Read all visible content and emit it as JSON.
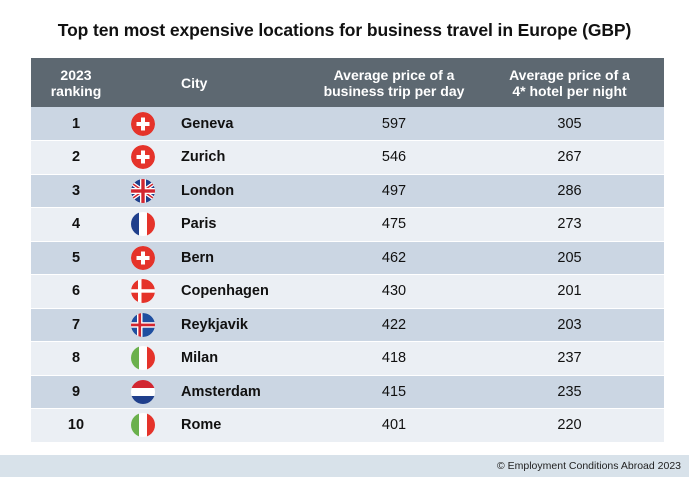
{
  "title": "Top ten most expensive locations for business travel in Europe (GBP)",
  "headers": {
    "rank_line1": "2023",
    "rank_line2": "ranking",
    "city": "City",
    "trip_line1": "Average price of a",
    "trip_line2": "business trip per day",
    "hotel_line1": "Average price of a",
    "hotel_line2": "4* hotel per night"
  },
  "rows": [
    {
      "rank": "1",
      "flag": "switzerland",
      "city": "Geneva",
      "trip": "597",
      "hotel": "305"
    },
    {
      "rank": "2",
      "flag": "switzerland",
      "city": "Zurich",
      "trip": "546",
      "hotel": "267"
    },
    {
      "rank": "3",
      "flag": "united-kingdom",
      "city": "London",
      "trip": "497",
      "hotel": "286"
    },
    {
      "rank": "4",
      "flag": "france",
      "city": "Paris",
      "trip": "475",
      "hotel": "273"
    },
    {
      "rank": "5",
      "flag": "switzerland",
      "city": "Bern",
      "trip": "462",
      "hotel": "205"
    },
    {
      "rank": "6",
      "flag": "denmark",
      "city": "Copenhagen",
      "trip": "430",
      "hotel": "201"
    },
    {
      "rank": "7",
      "flag": "iceland",
      "city": "Reykjavik",
      "trip": "422",
      "hotel": "203"
    },
    {
      "rank": "8",
      "flag": "italy",
      "city": "Milan",
      "trip": "418",
      "hotel": "237"
    },
    {
      "rank": "9",
      "flag": "netherlands",
      "city": "Amsterdam",
      "trip": "415",
      "hotel": "235"
    },
    {
      "rank": "10",
      "flag": "italy",
      "city": "Rome",
      "trip": "401",
      "hotel": "220"
    }
  ],
  "chart_data": {
    "type": "table",
    "columns": [
      "2023 ranking",
      "City",
      "Average price of a business trip per day",
      "Average price of a 4* hotel per night"
    ],
    "rows": [
      [
        1,
        "Geneva",
        597,
        305
      ],
      [
        2,
        "Zurich",
        546,
        267
      ],
      [
        3,
        "London",
        497,
        286
      ],
      [
        4,
        "Paris",
        475,
        273
      ],
      [
        5,
        "Bern",
        462,
        205
      ],
      [
        6,
        "Copenhagen",
        430,
        201
      ],
      [
        7,
        "Reykjavik",
        422,
        203
      ],
      [
        8,
        "Milan",
        418,
        237
      ],
      [
        9,
        "Amsterdam",
        415,
        235
      ],
      [
        10,
        "Rome",
        401,
        220
      ]
    ]
  },
  "colors": {
    "header_bg": "#5d6871",
    "row_odd": "#cbd6e3",
    "row_even": "#ebeff4",
    "page_bg": "#d8e2ea"
  },
  "footer": "© Employment Conditions Abroad 2023"
}
